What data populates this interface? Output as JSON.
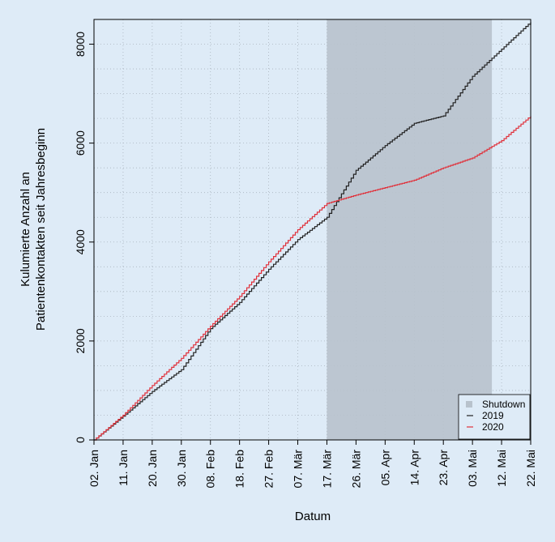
{
  "chart_data": {
    "type": "line",
    "ylabel_line1": "Kulumierte Anzahl an",
    "ylabel_line2": "Patientenkontakten seit Jahresbeginn",
    "xlabel": "Datum",
    "x_ticks": [
      "02. Jan",
      "11. Jan",
      "20. Jan",
      "30. Jan",
      "08. Feb",
      "18. Feb",
      "27. Feb",
      "07. Mär",
      "17. Mär",
      "26. Mär",
      "05. Apr",
      "14. Apr",
      "23. Apr",
      "03. Mai",
      "12. Mai",
      "22. Mai"
    ],
    "y_ticks": [
      0,
      2000,
      4000,
      6000,
      8000
    ],
    "ylim": [
      0,
      8500
    ],
    "xlim": [
      "02. Jan",
      "22. Mai"
    ],
    "grid": true,
    "legend_position": "bottom-right",
    "legend": [
      {
        "label": "Shutdown",
        "color": "#b8c2cc"
      },
      {
        "label": "2019",
        "color": "#222222"
      },
      {
        "label": "2020",
        "color": "#e0303a"
      }
    ],
    "shutdown_range": [
      "17. Mär",
      "09. Mai"
    ],
    "series": [
      {
        "name": "2019",
        "color": "#222222",
        "dates": [
          "02. Jan",
          "11. Jan",
          "20. Jan",
          "30. Jan",
          "08. Feb",
          "18. Feb",
          "27. Feb",
          "07. Mär",
          "17. Mär",
          "26. Mär",
          "05. Apr",
          "14. Apr",
          "23. Apr",
          "03. Mai",
          "12. Mai",
          "22. Mai"
        ],
        "values": [
          0,
          480,
          980,
          1420,
          2250,
          2780,
          3450,
          4050,
          4500,
          5450,
          5950,
          6400,
          6550,
          7350,
          7900,
          8450
        ]
      },
      {
        "name": "2020",
        "color": "#e0303a",
        "dates": [
          "02. Jan",
          "11. Jan",
          "20. Jan",
          "30. Jan",
          "08. Feb",
          "18. Feb",
          "27. Feb",
          "07. Mär",
          "17. Mär",
          "26. Mär",
          "05. Apr",
          "14. Apr",
          "23. Apr",
          "03. Mai",
          "12. Mai",
          "22. Mai"
        ],
        "values": [
          0,
          500,
          1100,
          1650,
          2300,
          2900,
          3600,
          4250,
          4780,
          4950,
          5100,
          5250,
          5500,
          5700,
          6050,
          6550
        ]
      }
    ]
  }
}
